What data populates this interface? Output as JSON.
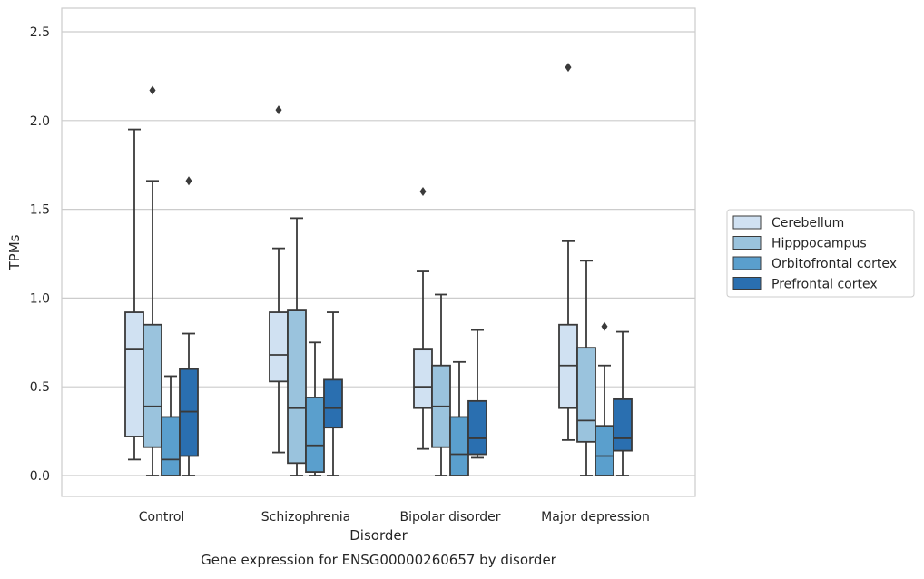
{
  "chart_data": {
    "type": "box",
    "title": "Gene expression for ENSG00000260657 by disorder",
    "xlabel": "Disorder",
    "ylabel": "TPMs",
    "ylim": [
      -0.12,
      2.62
    ],
    "yticks": [
      0.0,
      0.5,
      1.0,
      1.5,
      2.0,
      2.5
    ],
    "ytick_labels": [
      "0.0",
      "0.5",
      "1.0",
      "1.5",
      "2.0",
      "2.5"
    ],
    "grid": "horizontal",
    "legend_position": "right",
    "categories": [
      "Control",
      "Schizophrenia",
      "Bipolar disorder",
      "Major depression"
    ],
    "series": [
      {
        "name": "Cerebellum",
        "color": "#d0e1f2",
        "boxes": [
          {
            "whisker_low": 0.09,
            "q1": 0.22,
            "median": 0.71,
            "q3": 0.92,
            "whisker_high": 1.95,
            "outliers": []
          },
          {
            "whisker_low": 0.13,
            "q1": 0.53,
            "median": 0.68,
            "q3": 0.92,
            "whisker_high": 1.28,
            "outliers": [
              2.06
            ]
          },
          {
            "whisker_low": 0.15,
            "q1": 0.38,
            "median": 0.5,
            "q3": 0.71,
            "whisker_high": 1.15,
            "outliers": [
              1.6
            ]
          },
          {
            "whisker_low": 0.2,
            "q1": 0.38,
            "median": 0.62,
            "q3": 0.85,
            "whisker_high": 1.32,
            "outliers": [
              2.3
            ]
          }
        ]
      },
      {
        "name": "Hipppocampus",
        "color": "#9ac3dd",
        "boxes": [
          {
            "whisker_low": 0.0,
            "q1": 0.16,
            "median": 0.39,
            "q3": 0.85,
            "whisker_high": 1.66,
            "outliers": [
              2.17
            ]
          },
          {
            "whisker_low": 0.0,
            "q1": 0.07,
            "median": 0.38,
            "q3": 0.93,
            "whisker_high": 1.45,
            "outliers": []
          },
          {
            "whisker_low": 0.0,
            "q1": 0.16,
            "median": 0.39,
            "q3": 0.62,
            "whisker_high": 1.02,
            "outliers": []
          },
          {
            "whisker_low": 0.0,
            "q1": 0.19,
            "median": 0.31,
            "q3": 0.72,
            "whisker_high": 1.21,
            "outliers": []
          }
        ]
      },
      {
        "name": "Orbitofrontal cortex",
        "color": "#5a9fcd",
        "boxes": [
          {
            "whisker_low": 0.0,
            "q1": 0.0,
            "median": 0.09,
            "q3": 0.33,
            "whisker_high": 0.56,
            "outliers": []
          },
          {
            "whisker_low": 0.0,
            "q1": 0.02,
            "median": 0.17,
            "q3": 0.44,
            "whisker_high": 0.75,
            "outliers": []
          },
          {
            "whisker_low": 0.0,
            "q1": 0.0,
            "median": 0.12,
            "q3": 0.33,
            "whisker_high": 0.64,
            "outliers": []
          },
          {
            "whisker_low": 0.0,
            "q1": 0.0,
            "median": 0.11,
            "q3": 0.28,
            "whisker_high": 0.62,
            "outliers": [
              0.84
            ]
          }
        ]
      },
      {
        "name": "Prefrontal cortex",
        "color": "#2a6fb0",
        "boxes": [
          {
            "whisker_low": 0.0,
            "q1": 0.11,
            "median": 0.36,
            "q3": 0.6,
            "whisker_high": 0.8,
            "outliers": [
              1.66
            ]
          },
          {
            "whisker_low": 0.0,
            "q1": 0.27,
            "median": 0.38,
            "q3": 0.54,
            "whisker_high": 0.92,
            "outliers": []
          },
          {
            "whisker_low": 0.1,
            "q1": 0.12,
            "median": 0.21,
            "q3": 0.42,
            "whisker_high": 0.82,
            "outliers": []
          },
          {
            "whisker_low": 0.0,
            "q1": 0.14,
            "median": 0.21,
            "q3": 0.43,
            "whisker_high": 0.81,
            "outliers": []
          }
        ]
      }
    ]
  }
}
